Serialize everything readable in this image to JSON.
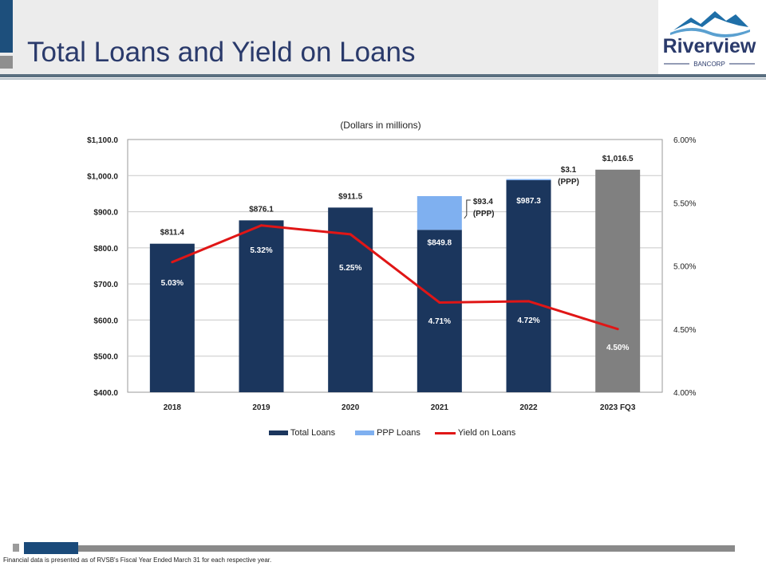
{
  "slide": {
    "title": "Total Loans and Yield on Loans",
    "footnote": "Financial data is presented as of RVSB's Fiscal Year Ended March 31 for each respective year."
  },
  "logo": {
    "name": "Riverview",
    "sub": "BANCORP",
    "icon": "mountain-wave-icon",
    "colors": {
      "mountain": "#1f6fa8",
      "text": "#2a3a6b"
    }
  },
  "chart_data": {
    "type": "bar",
    "subtitle": "(Dollars in millions)",
    "categories": [
      "2018",
      "2019",
      "2020",
      "2021",
      "2022",
      "2023 FQ3"
    ],
    "series": [
      {
        "name": "Total Loans",
        "type": "bar",
        "color": "#1b365d",
        "values": [
          811.4,
          876.1,
          911.5,
          849.8,
          987.3,
          1016.5
        ]
      },
      {
        "name": "PPP Loans",
        "type": "bar",
        "stacked": true,
        "color": "#7fb0f0",
        "values": [
          0,
          0,
          0,
          93.4,
          3.1,
          0
        ]
      },
      {
        "name": "Yield on Loans",
        "type": "line",
        "axis": "right",
        "color": "#e01616",
        "values": [
          5.03,
          5.32,
          5.25,
          4.71,
          4.72,
          4.5
        ]
      }
    ],
    "last_bar_color": "#808080",
    "left_axis": {
      "min": 400,
      "max": 1100,
      "ticks": [
        "$400.0",
        "$500.0",
        "$600.0",
        "$700.0",
        "$800.0",
        "$900.0",
        "$1,000.0",
        "$1,100.0"
      ]
    },
    "right_axis": {
      "min": 4.0,
      "max": 6.0,
      "ticks": [
        "4.00%",
        "4.50%",
        "5.00%",
        "5.50%",
        "6.00%"
      ]
    },
    "bar_labels": {
      "totals": [
        "$811.4",
        "$876.1",
        "$911.5",
        "$849.8",
        "$987.3",
        "$1,016.5"
      ],
      "yields": [
        "5.03%",
        "5.32%",
        "5.25%",
        "4.71%",
        "4.72%",
        "4.50%"
      ],
      "ppp_2021": [
        "$93.4",
        "(PPP)"
      ],
      "ppp_2022": [
        "$3.1",
        "(PPP)"
      ]
    },
    "grid": true,
    "legend_position": "bottom"
  }
}
